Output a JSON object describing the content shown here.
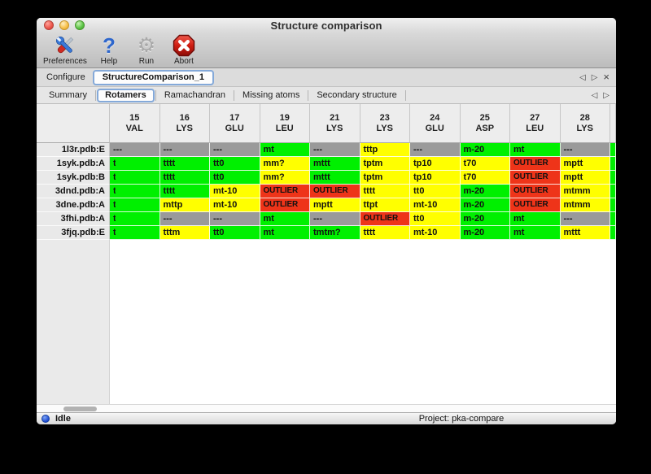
{
  "window": {
    "title": "Structure comparison"
  },
  "toolbar": {
    "items": [
      {
        "label": "Preferences",
        "icon": "tools-icon"
      },
      {
        "label": "Help",
        "icon": "help-icon"
      },
      {
        "label": "Run",
        "icon": "gear-icon"
      },
      {
        "label": "Abort",
        "icon": "abort-icon"
      }
    ]
  },
  "configure": {
    "label": "Configure",
    "value": "StructureComparison_1"
  },
  "panel_nav": {
    "back": "◁",
    "forward": "▷",
    "close": "×"
  },
  "tabs": [
    "Summary",
    "Rotamers",
    "Ramachandran",
    "Missing atoms",
    "Secondary structure"
  ],
  "active_tab": "Rotamers",
  "colors": {
    "green": "#00f000",
    "yellow": "#ffff00",
    "red": "#ee3419",
    "gray": "#9a9a9a",
    "accent": "#84a9d9",
    "led_blue": "#1c49cf"
  },
  "table": {
    "columns": [
      {
        "num": "15",
        "res": "VAL"
      },
      {
        "num": "16",
        "res": "LYS"
      },
      {
        "num": "17",
        "res": "GLU"
      },
      {
        "num": "19",
        "res": "LEU"
      },
      {
        "num": "21",
        "res": "LYS"
      },
      {
        "num": "23",
        "res": "LYS"
      },
      {
        "num": "24",
        "res": "GLU"
      },
      {
        "num": "25",
        "res": "ASP"
      },
      {
        "num": "27",
        "res": "LEU"
      },
      {
        "num": "28",
        "res": "LYS"
      }
    ],
    "rows": [
      {
        "label": "1l3r.pdb:E",
        "sliver": "green",
        "cells": [
          {
            "text": "---",
            "color": "gray"
          },
          {
            "text": "---",
            "color": "gray"
          },
          {
            "text": "---",
            "color": "gray"
          },
          {
            "text": "mt",
            "color": "green"
          },
          {
            "text": "---",
            "color": "gray"
          },
          {
            "text": "tttp",
            "color": "yellow"
          },
          {
            "text": "---",
            "color": "gray"
          },
          {
            "text": "m-20",
            "color": "green"
          },
          {
            "text": "mt",
            "color": "green"
          },
          {
            "text": "---",
            "color": "gray"
          }
        ]
      },
      {
        "label": "1syk.pdb:A",
        "sliver": "green",
        "cells": [
          {
            "text": "t",
            "color": "green",
            "clip": true
          },
          {
            "text": "tttt",
            "color": "green"
          },
          {
            "text": "tt0",
            "color": "green"
          },
          {
            "text": "mm?",
            "color": "yellow"
          },
          {
            "text": "mttt",
            "color": "green"
          },
          {
            "text": "tptm",
            "color": "yellow"
          },
          {
            "text": "tp10",
            "color": "yellow"
          },
          {
            "text": "t70",
            "color": "yellow"
          },
          {
            "text": "OUTLIER",
            "color": "red"
          },
          {
            "text": "mptt",
            "color": "yellow"
          }
        ]
      },
      {
        "label": "1syk.pdb:B",
        "sliver": "green",
        "cells": [
          {
            "text": "t",
            "color": "green",
            "clip": true
          },
          {
            "text": "tttt",
            "color": "green"
          },
          {
            "text": "tt0",
            "color": "green"
          },
          {
            "text": "mm?",
            "color": "yellow"
          },
          {
            "text": "mttt",
            "color": "green"
          },
          {
            "text": "tptm",
            "color": "yellow"
          },
          {
            "text": "tp10",
            "color": "yellow"
          },
          {
            "text": "t70",
            "color": "yellow"
          },
          {
            "text": "OUTLIER",
            "color": "red"
          },
          {
            "text": "mptt",
            "color": "yellow"
          }
        ]
      },
      {
        "label": "3dnd.pdb:A",
        "sliver": "green",
        "cells": [
          {
            "text": "t",
            "color": "green",
            "clip": true
          },
          {
            "text": "tttt",
            "color": "green"
          },
          {
            "text": "mt-10",
            "color": "yellow"
          },
          {
            "text": "OUTLIER",
            "color": "red"
          },
          {
            "text": "OUTLIER",
            "color": "red"
          },
          {
            "text": "tttt",
            "color": "yellow"
          },
          {
            "text": "tt0",
            "color": "yellow"
          },
          {
            "text": "m-20",
            "color": "green"
          },
          {
            "text": "OUTLIER",
            "color": "red"
          },
          {
            "text": "mtmm",
            "color": "yellow"
          }
        ]
      },
      {
        "label": "3dne.pdb:A",
        "sliver": "green",
        "cells": [
          {
            "text": "t",
            "color": "green",
            "clip": true
          },
          {
            "text": "mttp",
            "color": "yellow"
          },
          {
            "text": "mt-10",
            "color": "yellow"
          },
          {
            "text": "OUTLIER",
            "color": "red"
          },
          {
            "text": "mptt",
            "color": "yellow"
          },
          {
            "text": "ttpt",
            "color": "yellow"
          },
          {
            "text": "mt-10",
            "color": "yellow"
          },
          {
            "text": "m-20",
            "color": "green"
          },
          {
            "text": "OUTLIER",
            "color": "red"
          },
          {
            "text": "mtmm",
            "color": "yellow"
          }
        ]
      },
      {
        "label": "3fhi.pdb:A",
        "sliver": "green",
        "cells": [
          {
            "text": "t",
            "color": "green",
            "clip": true
          },
          {
            "text": "---",
            "color": "gray"
          },
          {
            "text": "---",
            "color": "gray"
          },
          {
            "text": "mt",
            "color": "green"
          },
          {
            "text": "---",
            "color": "gray"
          },
          {
            "text": "OUTLIER",
            "color": "red"
          },
          {
            "text": "tt0",
            "color": "yellow"
          },
          {
            "text": "m-20",
            "color": "green"
          },
          {
            "text": "mt",
            "color": "green"
          },
          {
            "text": "---",
            "color": "gray"
          }
        ]
      },
      {
        "label": "3fjq.pdb:E",
        "sliver": "green",
        "cells": [
          {
            "text": "t",
            "color": "green",
            "clip": true
          },
          {
            "text": "tttm",
            "color": "yellow"
          },
          {
            "text": "tt0",
            "color": "green"
          },
          {
            "text": "mt",
            "color": "green"
          },
          {
            "text": "tmtm?",
            "color": "green"
          },
          {
            "text": "tttt",
            "color": "yellow"
          },
          {
            "text": "mt-10",
            "color": "yellow"
          },
          {
            "text": "m-20",
            "color": "green"
          },
          {
            "text": "mt",
            "color": "green"
          },
          {
            "text": "mttt",
            "color": "yellow"
          }
        ]
      }
    ]
  },
  "status_bar": {
    "status": "Idle",
    "project": "Project: pka-compare"
  }
}
